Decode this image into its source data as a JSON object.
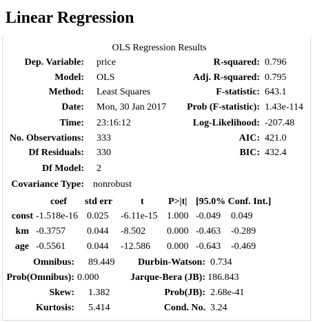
{
  "page": {
    "title": "Linear Regression"
  },
  "table1": {
    "caption": "OLS Regression Results",
    "rows": [
      {
        "left_label": "Dep. Variable:",
        "left_value": "price",
        "right_label": "R-squared:",
        "right_value": "0.796"
      },
      {
        "left_label": "Model:",
        "left_value": "OLS",
        "right_label": "Adj. R-squared:",
        "right_value": "0.795"
      },
      {
        "left_label": "Method:",
        "left_value": "Least Squares",
        "right_label": "F-statistic:",
        "right_value": "643.1"
      },
      {
        "left_label": "Date:",
        "left_value": "Mon, 30 Jan 2017",
        "right_label": "Prob (F-statistic):",
        "right_value": "1.43e-114"
      },
      {
        "left_label": "Time:",
        "left_value": "23:16:12",
        "right_label": "Log-Likelihood:",
        "right_value": "-207.48"
      },
      {
        "left_label": "No. Observations:",
        "left_value": "333",
        "right_label": "AIC:",
        "right_value": "421.0"
      },
      {
        "left_label": "Df Residuals:",
        "left_value": "330",
        "right_label": "BIC:",
        "right_value": "432.4"
      },
      {
        "left_label": "Df Model:",
        "left_value": "2",
        "right_label": "",
        "right_value": ""
      },
      {
        "left_label": "Covariance Type:",
        "left_value": "nonrobust",
        "right_label": "",
        "right_value": ""
      }
    ]
  },
  "table2": {
    "headers": [
      "coef",
      "std err",
      "t",
      "P>|t|",
      "[95.0% Conf. Int.]"
    ],
    "rows": [
      {
        "name": "const",
        "coef": "-1.518e-16",
        "std_err": "0.025",
        "t": "-6.11e-15",
        "p": "1.000",
        "ci_low": "-0.049",
        "ci_high": "0.049"
      },
      {
        "name": "km",
        "coef": "-0.3757",
        "std_err": "0.044",
        "t": "-8.502",
        "p": "0.000",
        "ci_low": "-0.463",
        "ci_high": "-0.289"
      },
      {
        "name": "age",
        "coef": "-0.5561",
        "std_err": "0.044",
        "t": "-12.586",
        "p": "0.000",
        "ci_low": "-0.643",
        "ci_high": "-0.469"
      }
    ]
  },
  "table3": {
    "rows": [
      {
        "left_label": "Omnibus:",
        "left_value": "89.449",
        "right_label": "Durbin-Watson:",
        "right_value": "0.734"
      },
      {
        "left_label": "Prob(Omnibus):",
        "left_value": "0.000",
        "right_label": "Jarque-Bera (JB):",
        "right_value": "186.843"
      },
      {
        "left_label": "Skew:",
        "left_value": "1.382",
        "right_label": "Prob(JB):",
        "right_value": "2.68e-41"
      },
      {
        "left_label": "Kurtosis:",
        "left_value": "5.414",
        "right_label": "Cond. No.",
        "right_value": "3.24"
      }
    ]
  }
}
